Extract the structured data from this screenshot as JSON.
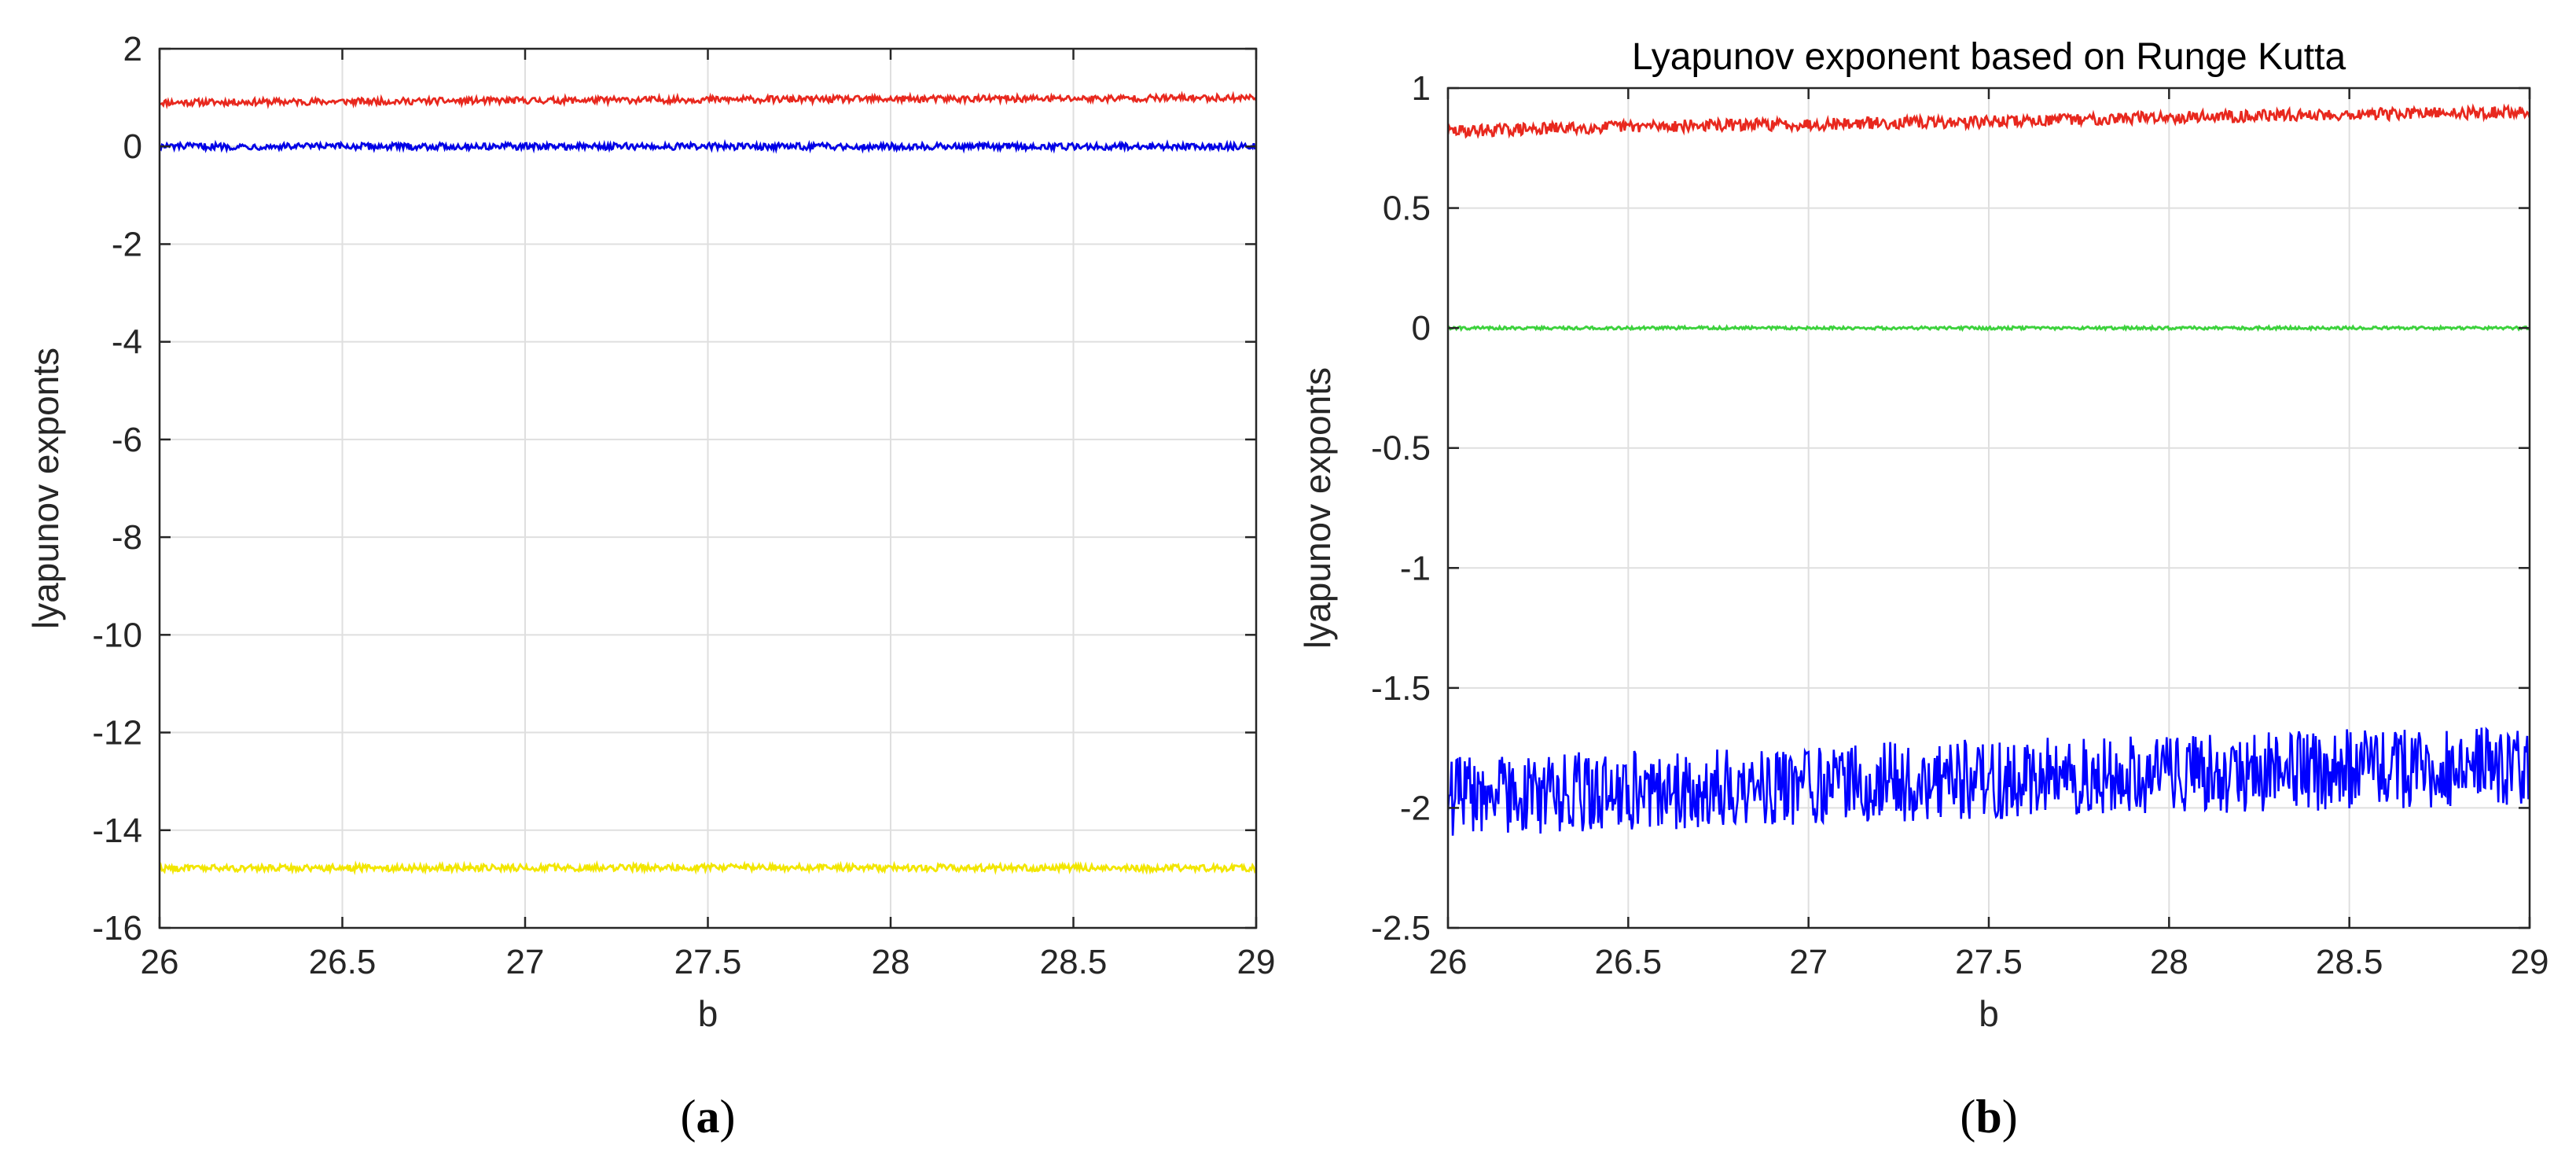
{
  "chart_data": [
    {
      "type": "line",
      "panel_label": "a",
      "title": "",
      "xlabel": "b",
      "ylabel": "lyapunov exponts",
      "xlim": [
        26,
        29
      ],
      "ylim": [
        -16,
        2
      ],
      "xticks": [
        "26",
        "26.5",
        "27",
        "27.5",
        "28",
        "28.5",
        "29"
      ],
      "yticks": [
        "2",
        "0",
        "-2",
        "-4",
        "-6",
        "-8",
        "-10",
        "-12",
        "-14",
        "-16"
      ],
      "grid": true,
      "series": [
        {
          "color": "#e8281e",
          "x": [
            26,
            26.5,
            27,
            27.5,
            28,
            28.5,
            29
          ],
          "y": [
            0.9,
            0.92,
            0.94,
            0.96,
            0.97,
            0.98,
            1.0
          ]
        },
        {
          "color": "#0000e6",
          "x": [
            26,
            26.5,
            27,
            27.5,
            28,
            28.5,
            29
          ],
          "y": [
            0.0,
            0.0,
            0.0,
            0.0,
            0.0,
            0.0,
            0.0
          ]
        },
        {
          "color": "#f2e600",
          "x": [
            26,
            26.5,
            27,
            27.5,
            28,
            28.5,
            29
          ],
          "y": [
            -14.78,
            -14.77,
            -14.77,
            -14.76,
            -14.77,
            -14.77,
            -14.78
          ]
        }
      ]
    },
    {
      "type": "line",
      "panel_label": "b",
      "title": "Lyapunov exponent based on Runge Kutta",
      "xlabel": "b",
      "ylabel": "lyapunov exponts",
      "xlim": [
        26,
        29
      ],
      "ylim": [
        -2.5,
        1
      ],
      "xticks": [
        "26",
        "26.5",
        "27",
        "27.5",
        "28",
        "28.5",
        "29"
      ],
      "yticks": [
        "1",
        "0.5",
        "0",
        "-0.5",
        "-1",
        "-1.5",
        "-2",
        "-2.5"
      ],
      "grid": true,
      "series": [
        {
          "color": "#e8281e",
          "x": [
            26,
            26.5,
            27,
            27.5,
            28,
            28.5,
            29
          ],
          "y": [
            0.82,
            0.84,
            0.85,
            0.86,
            0.88,
            0.89,
            0.9
          ]
        },
        {
          "color": "#3cd23c",
          "x": [
            26,
            26.5,
            27,
            27.5,
            28,
            28.5,
            29
          ],
          "y": [
            0.0,
            0.0,
            0.0,
            0.0,
            0.0,
            0.0,
            0.0
          ]
        },
        {
          "color": "#0000ff",
          "x": [
            26,
            26.5,
            27,
            27.5,
            28,
            28.5,
            29
          ],
          "y": [
            -1.95,
            -1.93,
            -1.9,
            -1.88,
            -1.86,
            -1.84,
            -1.82
          ]
        }
      ]
    }
  ]
}
